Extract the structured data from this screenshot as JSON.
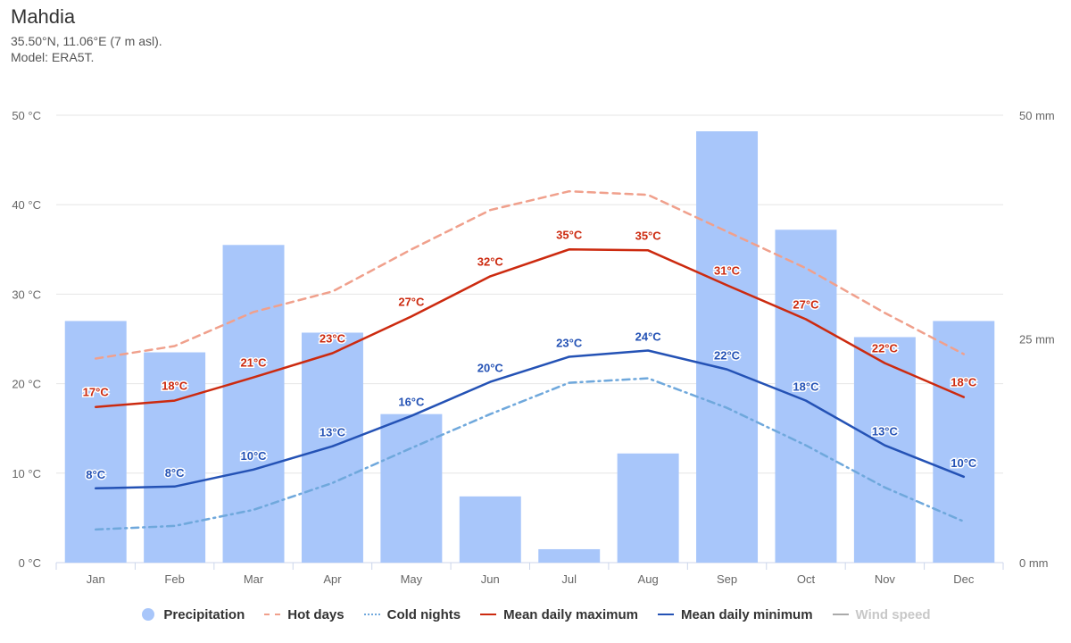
{
  "header": {
    "title": "Mahdia",
    "coords": "35.50°N, 11.06°E (7 m asl).",
    "model": "Model: ERA5T."
  },
  "colors": {
    "precipitation": "#a8c6fa",
    "hot_days": "#f0a08c",
    "cold_nights": "#6fa8dc",
    "mean_max": "#cc2a0f",
    "mean_min": "#2452b5",
    "wind_speed": "#aaaaaa",
    "grid": "#e6e6e6"
  },
  "legend": [
    {
      "label": "Precipitation",
      "symbol": "circle",
      "color": "#a8c6fa",
      "enabled": true
    },
    {
      "label": "Hot days",
      "symbol": "dash",
      "color": "#f0a08c",
      "enabled": true
    },
    {
      "label": "Cold nights",
      "symbol": "dashdot",
      "color": "#6fa8dc",
      "enabled": true
    },
    {
      "label": "Mean daily maximum",
      "symbol": "line",
      "color": "#cc2a0f",
      "enabled": true
    },
    {
      "label": "Mean daily minimum",
      "symbol": "line",
      "color": "#2452b5",
      "enabled": true
    },
    {
      "label": "Wind speed",
      "symbol": "line",
      "color": "#aaaaaa",
      "enabled": false
    }
  ],
  "chart_data": {
    "type": "bar+line",
    "categories": [
      "Jan",
      "Feb",
      "Mar",
      "Apr",
      "May",
      "Jun",
      "Jul",
      "Aug",
      "Sep",
      "Oct",
      "Nov",
      "Dec"
    ],
    "y_left": {
      "min": 0,
      "max": 50,
      "ticks": [
        0,
        10,
        20,
        30,
        40,
        50
      ],
      "tick_labels": [
        "0 °C",
        "10 °C",
        "20 °C",
        "30 °C",
        "40 °C",
        "50 °C"
      ]
    },
    "y_right": {
      "min": 0,
      "max": 50,
      "ticks": [
        0,
        25,
        50
      ],
      "tick_labels": [
        "0 mm",
        "25 mm",
        "50 mm"
      ]
    },
    "grid": true,
    "legend_position": "bottom",
    "series": [
      {
        "name": "Precipitation",
        "type": "bar",
        "axis": "right",
        "values": [
          27,
          23.5,
          35.5,
          25.7,
          16.6,
          7.4,
          1.5,
          12.2,
          48.2,
          37.2,
          25.2,
          27
        ]
      },
      {
        "name": "Hot days",
        "type": "line",
        "style": "dash",
        "axis": "left",
        "values": [
          22.8,
          24.2,
          28,
          30.3,
          35,
          39.4,
          41.5,
          41.1,
          37,
          32.9,
          27.9,
          23.3
        ]
      },
      {
        "name": "Cold nights",
        "type": "line",
        "style": "dashdot",
        "axis": "left",
        "values": [
          3.7,
          4.1,
          5.9,
          8.9,
          12.8,
          16.6,
          20.1,
          20.6,
          17.3,
          13.1,
          8.4,
          4.6
        ]
      },
      {
        "name": "Mean daily maximum",
        "type": "line",
        "style": "solid",
        "axis": "left",
        "values": [
          17.4,
          18.1,
          20.7,
          23.4,
          27.5,
          32,
          35,
          34.9,
          31,
          27.2,
          22.3,
          18.5
        ],
        "labels": [
          "17°C",
          "18°C",
          "21°C",
          "23°C",
          "27°C",
          "32°C",
          "35°C",
          "35°C",
          "31°C",
          "27°C",
          "22°C",
          "18°C"
        ]
      },
      {
        "name": "Mean daily minimum",
        "type": "line",
        "style": "solid",
        "axis": "left",
        "values": [
          8.3,
          8.5,
          10.4,
          13,
          16.4,
          20.2,
          23,
          23.7,
          21.6,
          18.1,
          13.1,
          9.6
        ],
        "labels": [
          "8°C",
          "8°C",
          "10°C",
          "13°C",
          "16°C",
          "20°C",
          "23°C",
          "24°C",
          "22°C",
          "18°C",
          "13°C",
          "10°C"
        ]
      }
    ]
  }
}
